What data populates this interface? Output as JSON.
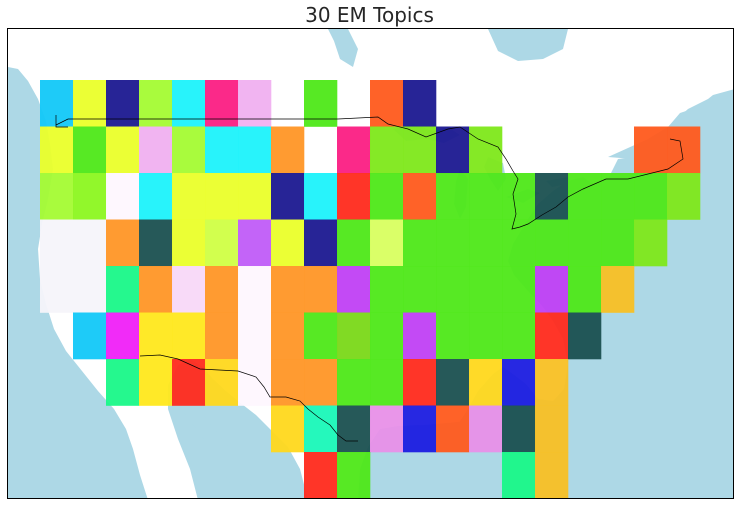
{
  "title": "30 EM Topics",
  "colors": {
    "water": "#add8e6",
    "land": "#ffffff",
    "frame": "#000000",
    "border_line": "#000000"
  },
  "grid": {
    "rows": 9,
    "cols": 20,
    "cells": [
      [
        0,
        0,
        "#12c8f8"
      ],
      [
        0,
        1,
        "#eaff2a"
      ],
      [
        0,
        2,
        "#1b1890"
      ],
      [
        0,
        3,
        "#a4fb33"
      ],
      [
        0,
        4,
        "#1cf2fb"
      ],
      [
        0,
        5,
        "#fb1d83"
      ],
      [
        0,
        6,
        "#f0b0f0"
      ],
      [
        0,
        8,
        "#4ee818"
      ],
      [
        0,
        10,
        "#ff5a1c"
      ],
      [
        0,
        11,
        "#1b1890"
      ],
      [
        1,
        0,
        "#eaff2a"
      ],
      [
        1,
        1,
        "#4ee818"
      ],
      [
        1,
        2,
        "#eaff2a"
      ],
      [
        1,
        3,
        "#f0b0f0"
      ],
      [
        1,
        4,
        "#a4fb33"
      ],
      [
        1,
        5,
        "#1cf2fb"
      ],
      [
        1,
        6,
        "#1cf2fb"
      ],
      [
        1,
        7,
        "#ff9626"
      ],
      [
        1,
        9,
        "#fb1d83"
      ],
      [
        1,
        10,
        "#7ee81a"
      ],
      [
        1,
        11,
        "#7ee81a"
      ],
      [
        1,
        12,
        "#1b1890"
      ],
      [
        1,
        13,
        "#7ee81a"
      ],
      [
        1,
        18,
        "#ff5a1c"
      ],
      [
        1,
        19,
        "#ff5a1c"
      ],
      [
        2,
        0,
        "#a4fb33"
      ],
      [
        2,
        1,
        "#8cf720"
      ],
      [
        2,
        2,
        "#fef7fe"
      ],
      [
        2,
        3,
        "#1cf2fb"
      ],
      [
        2,
        4,
        "#eaff2a"
      ],
      [
        2,
        5,
        "#eaff2a"
      ],
      [
        2,
        6,
        "#eaff2a"
      ],
      [
        2,
        7,
        "#1b1890"
      ],
      [
        2,
        8,
        "#1cf2fb"
      ],
      [
        2,
        9,
        "#ff2a1c"
      ],
      [
        2,
        10,
        "#4ee818"
      ],
      [
        2,
        11,
        "#ff5a1c"
      ],
      [
        2,
        12,
        "#4ee818"
      ],
      [
        2,
        13,
        "#4ee818"
      ],
      [
        2,
        14,
        "#4ee818"
      ],
      [
        2,
        15,
        "#1a5050"
      ],
      [
        2,
        16,
        "#4ee818"
      ],
      [
        2,
        17,
        "#4ee818"
      ],
      [
        2,
        18,
        "#4ee818"
      ],
      [
        2,
        19,
        "#7ee81a"
      ],
      [
        3,
        0,
        "#f6f4fa"
      ],
      [
        3,
        1,
        "#f6f4fa"
      ],
      [
        3,
        2,
        "#ff9626"
      ],
      [
        3,
        3,
        "#1a5050"
      ],
      [
        3,
        4,
        "#eaff2a"
      ],
      [
        3,
        5,
        "#d0ff45"
      ],
      [
        3,
        6,
        "#c05cf8"
      ],
      [
        3,
        7,
        "#eaff2a"
      ],
      [
        3,
        8,
        "#1b1890"
      ],
      [
        3,
        9,
        "#4ee818"
      ],
      [
        3,
        10,
        "#d8ff60"
      ],
      [
        3,
        11,
        "#4ee818"
      ],
      [
        3,
        12,
        "#4ee818"
      ],
      [
        3,
        13,
        "#4ee818"
      ],
      [
        3,
        14,
        "#4ee818"
      ],
      [
        3,
        15,
        "#4ee818"
      ],
      [
        3,
        16,
        "#4ee818"
      ],
      [
        3,
        17,
        "#4ee818"
      ],
      [
        3,
        18,
        "#7ee81a"
      ],
      [
        4,
        0,
        "#f6f4fa"
      ],
      [
        4,
        1,
        "#f6f4fa"
      ],
      [
        4,
        2,
        "#19f888"
      ],
      [
        4,
        3,
        "#ff9626"
      ],
      [
        4,
        4,
        "#f8d8f8"
      ],
      [
        4,
        5,
        "#ff9626"
      ],
      [
        4,
        6,
        "#fef7fe"
      ],
      [
        4,
        7,
        "#ff9626"
      ],
      [
        4,
        8,
        "#ff9626"
      ],
      [
        4,
        9,
        "#c040f4"
      ],
      [
        4,
        10,
        "#4ee818"
      ],
      [
        4,
        11,
        "#4ee818"
      ],
      [
        4,
        12,
        "#4ee818"
      ],
      [
        4,
        13,
        "#4ee818"
      ],
      [
        4,
        14,
        "#4ee818"
      ],
      [
        4,
        15,
        "#c040f4"
      ],
      [
        4,
        16,
        "#4ee818"
      ],
      [
        4,
        17,
        "#f8c024"
      ],
      [
        5,
        1,
        "#12c8f8"
      ],
      [
        5,
        2,
        "#f020f8"
      ],
      [
        5,
        3,
        "#ffe81c"
      ],
      [
        5,
        4,
        "#ffe81c"
      ],
      [
        5,
        5,
        "#ff9626"
      ],
      [
        5,
        6,
        "#fef7fe"
      ],
      [
        5,
        7,
        "#ff9626"
      ],
      [
        5,
        8,
        "#4ee818"
      ],
      [
        5,
        9,
        "#7ad818"
      ],
      [
        5,
        10,
        "#4ee818"
      ],
      [
        5,
        11,
        "#c040f4"
      ],
      [
        5,
        12,
        "#4ee818"
      ],
      [
        5,
        13,
        "#4ee818"
      ],
      [
        5,
        14,
        "#4ee818"
      ],
      [
        5,
        15,
        "#ff2a1c"
      ],
      [
        5,
        16,
        "#1a5050"
      ],
      [
        6,
        2,
        "#19f888"
      ],
      [
        6,
        3,
        "#ffe81c"
      ],
      [
        6,
        4,
        "#ff2a1c"
      ],
      [
        6,
        5,
        "#ffd81c"
      ],
      [
        6,
        6,
        "#fef7fe"
      ],
      [
        6,
        7,
        "#ff9626"
      ],
      [
        6,
        8,
        "#ff9626"
      ],
      [
        6,
        9,
        "#4ee818"
      ],
      [
        6,
        10,
        "#4ee818"
      ],
      [
        6,
        11,
        "#ff2a1c"
      ],
      [
        6,
        12,
        "#1a5050"
      ],
      [
        6,
        13,
        "#ffd81c"
      ],
      [
        6,
        14,
        "#1b1ce0"
      ],
      [
        6,
        15,
        "#f8c024"
      ],
      [
        7,
        7,
        "#ffd81c"
      ],
      [
        7,
        8,
        "#19f8b8"
      ],
      [
        7,
        9,
        "#1a5050"
      ],
      [
        7,
        10,
        "#e890e8"
      ],
      [
        7,
        11,
        "#1b1ce0"
      ],
      [
        7,
        12,
        "#ff5a1c"
      ],
      [
        7,
        13,
        "#e890e8"
      ],
      [
        7,
        14,
        "#1a5050"
      ],
      [
        7,
        15,
        "#f8c024"
      ],
      [
        8,
        8,
        "#ff2a1c"
      ],
      [
        8,
        9,
        "#4ee818"
      ],
      [
        8,
        14,
        "#19f888"
      ],
      [
        8,
        15,
        "#f8c024"
      ]
    ]
  }
}
